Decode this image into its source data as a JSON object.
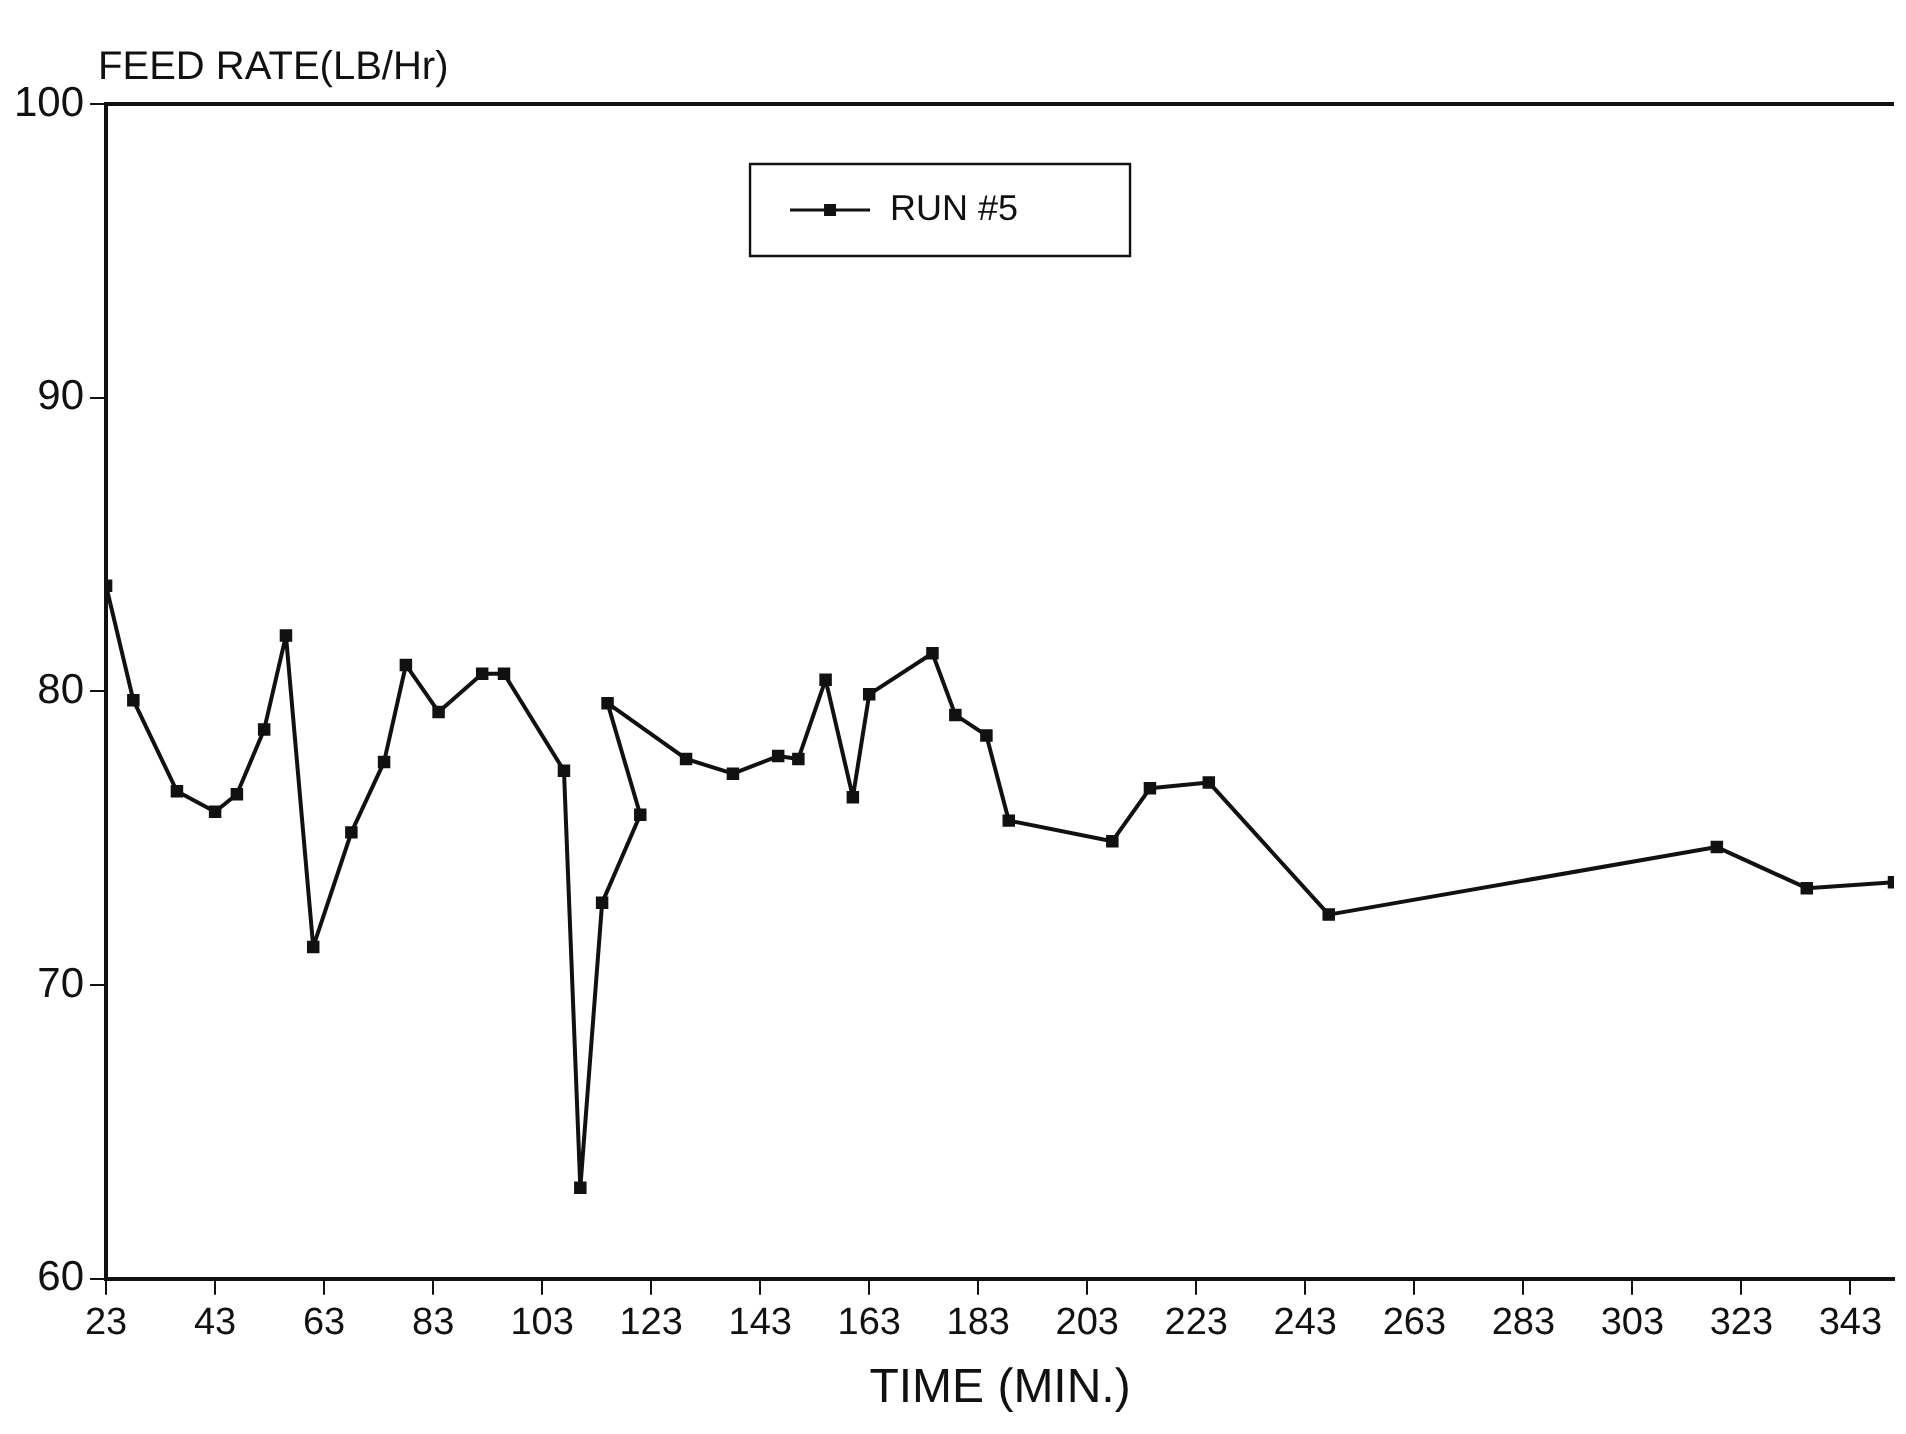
{
  "chart_data": {
    "type": "line",
    "ylabel": "FEED RATE(LB/Hr)",
    "xlabel": "TIME (MIN.)",
    "xlim": [
      23,
      351
    ],
    "xticks": [
      23,
      43,
      63,
      83,
      103,
      123,
      143,
      163,
      183,
      203,
      223,
      243,
      263,
      283,
      303,
      323,
      343
    ],
    "ylim": [
      60,
      100
    ],
    "yticks": [
      60,
      70,
      80,
      90,
      100
    ],
    "grid": false,
    "legend": "top",
    "marker": "square",
    "line_style": "solid",
    "series": [
      {
        "name": "RUN #5",
        "color": "#111111",
        "x": [
          23,
          28,
          36,
          43,
          47,
          52,
          56,
          61,
          68,
          74,
          78,
          84,
          92,
          96,
          107,
          110,
          114,
          121,
          115,
          129.4,
          138,
          146.3,
          150,
          155,
          160,
          163,
          174.6,
          178.8,
          184.5,
          188.6,
          207.6,
          214.5,
          225.3,
          247.3,
          318.5,
          335,
          351
        ],
        "values": [
          83.6,
          79.7,
          76.6,
          75.9,
          76.5,
          78.7,
          81.9,
          71.3,
          75.2,
          77.6,
          80.9,
          79.3,
          80.6,
          80.6,
          77.3,
          63.1,
          72.8,
          75.8,
          79.6,
          77.7,
          77.2,
          77.8,
          77.7,
          80.4,
          76.4,
          79.9,
          81.3,
          79.2,
          78.5,
          75.6,
          74.9,
          76.7,
          76.9,
          72.4,
          74.7,
          73.3,
          73.5
        ]
      }
    ]
  }
}
